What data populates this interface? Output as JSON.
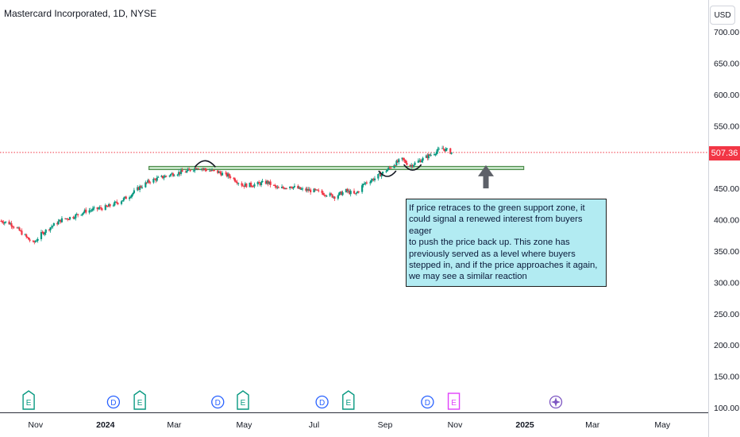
{
  "header": {
    "title": "Mastercard Incorporated, 1D, NYSE",
    "currency_button": "USD"
  },
  "colors": {
    "up": "#089981",
    "down": "#f23645",
    "support_zone_fill": "#c8e6c9",
    "support_zone_line": "#4c8c4a",
    "annotation_bg": "#b2ebf2",
    "arrow": "#5d6068",
    "price_line": "#f23645"
  },
  "annotation": {
    "text": "If  price retraces to the green support zone, it could signal a renewed interest from buyers eager\n to push the price back up. This zone has previously served as a level where buyers stepped in, and if the price approaches it again, we may see a similar reaction"
  },
  "current_price_label": "507.36",
  "chart_data": {
    "type": "candlestick",
    "title": "Mastercard Incorporated, 1D, NYSE",
    "xlabel": "",
    "ylabel": "",
    "y_ticks": [
      "100.00",
      "150.00",
      "200.00",
      "250.00",
      "300.00",
      "350.00",
      "400.00",
      "450.00",
      "500.00",
      "550.00",
      "600.00",
      "650.00",
      "700.00"
    ],
    "ylim": [
      100,
      722
    ],
    "x_ticks": [
      "Nov",
      "2024",
      "Mar",
      "May",
      "Jul",
      "Sep",
      "Nov",
      "2025",
      "Mar",
      "May"
    ],
    "x_tick_dates": [
      "2023-11-01",
      "2024-01-01",
      "2024-03-01",
      "2024-05-01",
      "2024-07-01",
      "2024-09-01",
      "2024-11-01",
      "2025-01-01",
      "2025-03-01",
      "2025-05-01"
    ],
    "x_range": [
      "2023-10-01",
      "2025-06-10"
    ],
    "grid": false,
    "current_price": 507.36,
    "support_zone": {
      "low": 480,
      "high": 485,
      "from": "2024-02-08",
      "to": "2024-12-31"
    },
    "projection_arrow": {
      "from_price": 450,
      "to_price": 487,
      "date": "2024-11-28"
    },
    "price_path": [
      {
        "date": "2023-10-02",
        "price": 398
      },
      {
        "date": "2023-10-10",
        "price": 394
      },
      {
        "date": "2023-10-17",
        "price": 384
      },
      {
        "date": "2023-10-24",
        "price": 372
      },
      {
        "date": "2023-10-30",
        "price": 362
      },
      {
        "date": "2023-11-06",
        "price": 377
      },
      {
        "date": "2023-11-14",
        "price": 388
      },
      {
        "date": "2023-11-24",
        "price": 400
      },
      {
        "date": "2023-12-04",
        "price": 405
      },
      {
        "date": "2023-12-15",
        "price": 414
      },
      {
        "date": "2024-01-02",
        "price": 420
      },
      {
        "date": "2024-01-12",
        "price": 428
      },
      {
        "date": "2024-01-22",
        "price": 438
      },
      {
        "date": "2024-01-31",
        "price": 452
      },
      {
        "date": "2024-02-09",
        "price": 462
      },
      {
        "date": "2024-02-20",
        "price": 468
      },
      {
        "date": "2024-03-01",
        "price": 474
      },
      {
        "date": "2024-03-12",
        "price": 477
      },
      {
        "date": "2024-03-21",
        "price": 484
      },
      {
        "date": "2024-03-28",
        "price": 480
      },
      {
        "date": "2024-04-08",
        "price": 476
      },
      {
        "date": "2024-04-19",
        "price": 469
      },
      {
        "date": "2024-04-30",
        "price": 455
      },
      {
        "date": "2024-05-10",
        "price": 456
      },
      {
        "date": "2024-05-21",
        "price": 460
      },
      {
        "date": "2024-05-31",
        "price": 449
      },
      {
        "date": "2024-06-10",
        "price": 454
      },
      {
        "date": "2024-06-20",
        "price": 448
      },
      {
        "date": "2024-07-01",
        "price": 446
      },
      {
        "date": "2024-07-10",
        "price": 442
      },
      {
        "date": "2024-07-19",
        "price": 437
      },
      {
        "date": "2024-07-29",
        "price": 446
      },
      {
        "date": "2024-08-06",
        "price": 440
      },
      {
        "date": "2024-08-14",
        "price": 458
      },
      {
        "date": "2024-08-23",
        "price": 466
      },
      {
        "date": "2024-09-03",
        "price": 480
      },
      {
        "date": "2024-09-10",
        "price": 490
      },
      {
        "date": "2024-09-16",
        "price": 496
      },
      {
        "date": "2024-09-23",
        "price": 486
      },
      {
        "date": "2024-09-30",
        "price": 493
      },
      {
        "date": "2024-10-07",
        "price": 500
      },
      {
        "date": "2024-10-14",
        "price": 507
      },
      {
        "date": "2024-10-21",
        "price": 514
      },
      {
        "date": "2024-10-29",
        "price": 507.36
      }
    ],
    "event_markers": [
      {
        "type": "E",
        "date": "2023-10-26"
      },
      {
        "type": "D",
        "date": "2024-01-08"
      },
      {
        "type": "E",
        "date": "2024-01-31"
      },
      {
        "type": "D",
        "date": "2024-04-08"
      },
      {
        "type": "E",
        "date": "2024-04-30"
      },
      {
        "type": "D",
        "date": "2024-07-08"
      },
      {
        "type": "E",
        "date": "2024-07-31"
      },
      {
        "type": "D",
        "date": "2024-10-08"
      },
      {
        "type": "E",
        "date": "2024-10-31"
      },
      {
        "type": "star",
        "date": "2025-01-28"
      }
    ],
    "highlight_marks": [
      {
        "shape": "arc-top",
        "date": "2024-03-28",
        "price": 484
      },
      {
        "shape": "arc-bottom",
        "date": "2024-09-03",
        "price": 478
      },
      {
        "shape": "arc-bottom",
        "date": "2024-09-25",
        "price": 488
      }
    ]
  }
}
